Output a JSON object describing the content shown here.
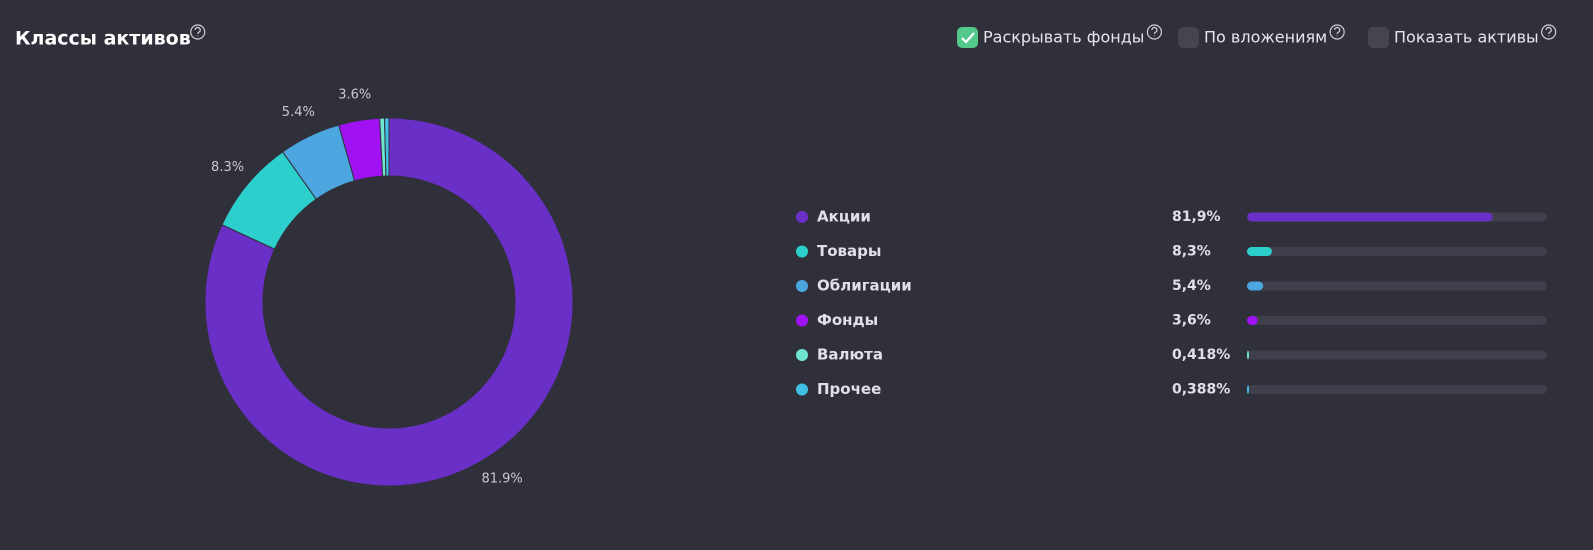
{
  "chart_data": {
    "type": "pie",
    "donut": true,
    "title": "Классы активов",
    "categories": [
      "Акции",
      "Товары",
      "Облигации",
      "Фонды",
      "Валюта",
      "Прочее"
    ],
    "values": [
      81.9,
      8.3,
      5.4,
      3.6,
      0.418,
      0.388
    ],
    "value_labels": [
      "81.9%",
      "8.3%",
      "5.4%",
      "3.6%",
      null,
      null
    ],
    "legend_value_labels": [
      "81,9%",
      "8,3%",
      "5,4%",
      "3,6%",
      "0,418%",
      "0,388%"
    ],
    "colors": [
      "#6a2fc6",
      "#2ccfcb",
      "#4ca6df",
      "#a012f2",
      "#6ee6cf",
      "#40c0e2"
    ]
  },
  "controls": [
    {
      "label": "Раскрывать фонды",
      "checked": true
    },
    {
      "label": "По вложениям",
      "checked": false
    },
    {
      "label": "Показать активы",
      "checked": false
    }
  ]
}
